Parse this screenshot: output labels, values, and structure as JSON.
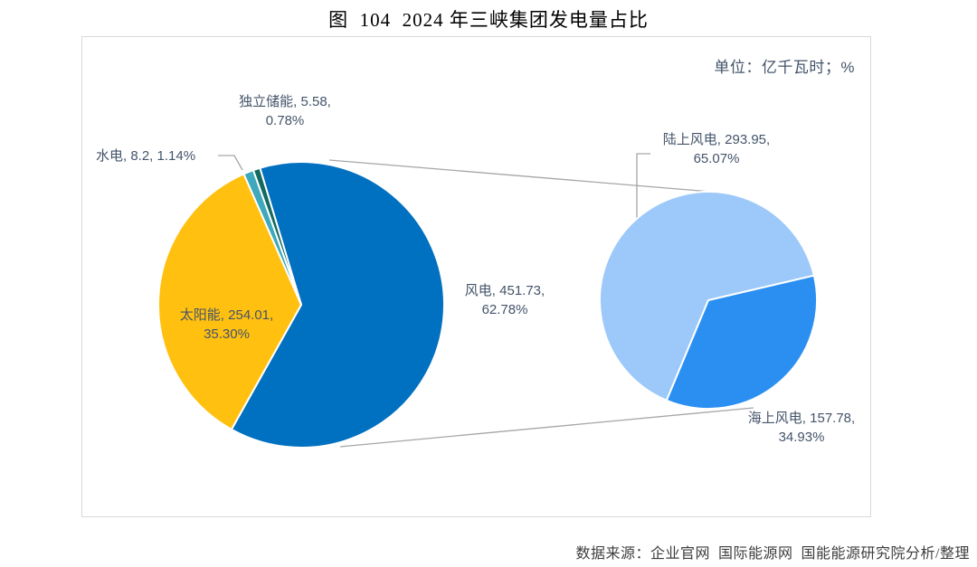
{
  "title": "图  104  2024 年三峡集团发电量占比",
  "unit_note": "单位：亿千瓦时；%",
  "source_note": "数据来源：企业官网  国际能源网  国能能源研究院分析/整理",
  "colors": {
    "wind": "#0070C0",
    "solar": "#FFC010",
    "hydro": "#3EA9BD",
    "storage": "#136A5E",
    "onshore": "#9CC9FA",
    "offshore": "#2B8FF2",
    "leader_line": "#A6A6A6",
    "frame_border": "#D9D9D9",
    "label_text": "#44546A"
  },
  "chart_data": [
    {
      "type": "pie",
      "name": "main-pie",
      "title": "2024 年三峡集团发电量占比",
      "unit": "亿千瓦时；%",
      "start_angle_deg": 343.2,
      "slices": [
        {
          "key": "wind",
          "label": "风电",
          "value": 451.73,
          "pct": 62.78,
          "color": "#0070C0"
        },
        {
          "key": "solar",
          "label": "太阳能",
          "value": 254.01,
          "pct": 35.3,
          "color": "#FFC010"
        },
        {
          "key": "hydro",
          "label": "水电",
          "value": 8.2,
          "pct": 1.14,
          "color": "#3EA9BD"
        },
        {
          "key": "storage",
          "label": "独立储能",
          "value": 5.58,
          "pct": 0.78,
          "color": "#136A5E"
        }
      ]
    },
    {
      "type": "pie",
      "name": "wind-breakdown-pie",
      "title": "风电构成（陆上/海上）",
      "unit": "亿千瓦时；%",
      "start_angle_deg": 202.6,
      "slices": [
        {
          "key": "onshore",
          "label": "陆上风电",
          "value": 293.95,
          "pct": 65.07,
          "color": "#9CC9FA"
        },
        {
          "key": "offshore",
          "label": "海上风电",
          "value": 157.78,
          "pct": 34.93,
          "color": "#2B8FF2"
        }
      ]
    }
  ],
  "labels": {
    "storage": {
      "line1": "独立储能, 5.58,",
      "line2": "0.78%"
    },
    "hydro": {
      "line1": "水电, 8.2, 1.14%"
    },
    "wind": {
      "line1": "风电, 451.73,",
      "line2": "62.78%"
    },
    "solar": {
      "line1": "太阳能, 254.01,",
      "line2": "35.30%"
    },
    "onshore": {
      "line1": "陆上风电, 293.95,",
      "line2": "65.07%"
    },
    "offshore": {
      "line1": "海上风电, 157.78,",
      "line2": "34.93%"
    }
  }
}
